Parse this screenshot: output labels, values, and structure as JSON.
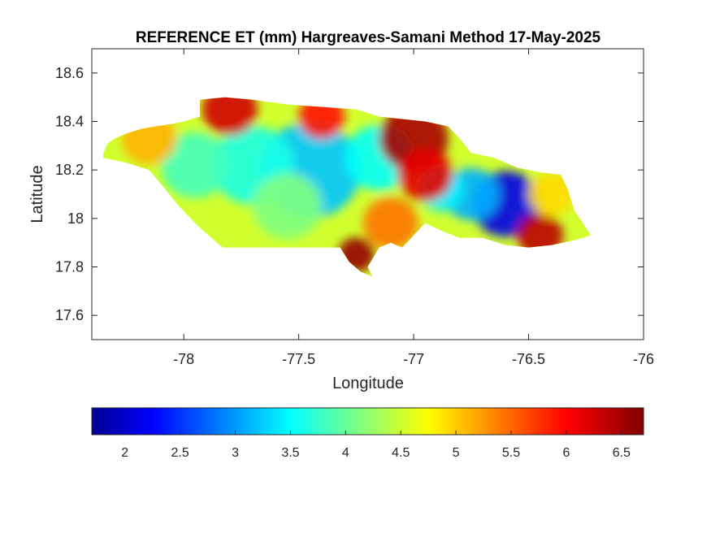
{
  "chart_data": {
    "type": "heatmap",
    "title": "REFERENCE ET (mm) Hargreaves-Samani Method  17-May-2025",
    "xlabel": "Longitude",
    "ylabel": "Latitude",
    "xlim": [
      -78.4,
      -76.0
    ],
    "ylim": [
      17.5,
      18.7
    ],
    "xticks": [
      -78,
      -77.5,
      -77,
      -76.5,
      -76
    ],
    "xtick_labels": [
      "-78",
      "-77.5",
      "-77",
      "-76.5",
      "-76"
    ],
    "yticks": [
      17.6,
      17.8,
      18.0,
      18.2,
      18.4,
      18.6
    ],
    "ytick_labels": [
      "17.6",
      "17.8",
      "18",
      "18.2",
      "18.4",
      "18.6"
    ],
    "colormap": "jet",
    "colorbar": {
      "location": "bottom",
      "clim": [
        1.7,
        6.7
      ],
      "ticks": [
        2,
        2.5,
        3,
        3.5,
        4,
        4.5,
        5,
        5.5,
        6,
        6.5
      ],
      "tick_labels": [
        "2",
        "2.5",
        "3",
        "3.5",
        "4",
        "4.5",
        "5",
        "5.5",
        "6",
        "6.5"
      ]
    },
    "grid": false,
    "region_outline": [
      [
        -78.35,
        18.27
      ],
      [
        -78.33,
        18.31
      ],
      [
        -78.3,
        18.33
      ],
      [
        -78.25,
        18.35
      ],
      [
        -78.18,
        18.37
      ],
      [
        -78.12,
        18.38
      ],
      [
        -78.05,
        18.39
      ],
      [
        -78.0,
        18.4
      ],
      [
        -77.93,
        18.42
      ],
      [
        -77.93,
        18.49
      ],
      [
        -77.82,
        18.5
      ],
      [
        -77.7,
        18.49
      ],
      [
        -77.55,
        18.47
      ],
      [
        -77.4,
        18.46
      ],
      [
        -77.25,
        18.45
      ],
      [
        -77.15,
        18.42
      ],
      [
        -77.05,
        18.41
      ],
      [
        -76.95,
        18.4
      ],
      [
        -76.85,
        18.38
      ],
      [
        -76.8,
        18.33
      ],
      [
        -76.75,
        18.27
      ],
      [
        -76.65,
        18.25
      ],
      [
        -76.55,
        18.21
      ],
      [
        -76.45,
        18.19
      ],
      [
        -76.36,
        18.18
      ],
      [
        -76.33,
        18.12
      ],
      [
        -76.3,
        18.03
      ],
      [
        -76.27,
        17.99
      ],
      [
        -76.23,
        17.93
      ],
      [
        -76.3,
        17.91
      ],
      [
        -76.4,
        17.89
      ],
      [
        -76.5,
        17.88
      ],
      [
        -76.6,
        17.89
      ],
      [
        -76.7,
        17.92
      ],
      [
        -76.8,
        17.92
      ],
      [
        -76.88,
        17.95
      ],
      [
        -76.95,
        17.98
      ],
      [
        -77.05,
        17.88
      ],
      [
        -77.1,
        17.9
      ],
      [
        -77.15,
        17.88
      ],
      [
        -77.2,
        17.8
      ],
      [
        -77.18,
        17.76
      ],
      [
        -77.23,
        17.78
      ],
      [
        -77.28,
        17.82
      ],
      [
        -77.32,
        17.88
      ],
      [
        -77.45,
        17.88
      ],
      [
        -77.6,
        17.88
      ],
      [
        -77.75,
        17.88
      ],
      [
        -77.83,
        17.88
      ],
      [
        -77.88,
        17.92
      ],
      [
        -77.95,
        17.98
      ],
      [
        -78.02,
        18.05
      ],
      [
        -78.08,
        18.12
      ],
      [
        -78.15,
        18.2
      ],
      [
        -78.25,
        18.23
      ],
      [
        -78.35,
        18.25
      ]
    ],
    "value_centers": [
      {
        "lon": -77.45,
        "lat": 18.2,
        "value": 3.3,
        "radius_deg": 0.22
      },
      {
        "lon": -77.7,
        "lat": 18.22,
        "value": 3.7,
        "radius_deg": 0.18
      },
      {
        "lon": -77.95,
        "lat": 18.22,
        "value": 3.9,
        "radius_deg": 0.15
      },
      {
        "lon": -77.55,
        "lat": 18.05,
        "value": 4.2,
        "radius_deg": 0.15
      },
      {
        "lon": -77.15,
        "lat": 18.25,
        "value": 3.6,
        "radius_deg": 0.15
      },
      {
        "lon": -76.6,
        "lat": 18.06,
        "value": 2.2,
        "radius_deg": 0.15
      },
      {
        "lon": -76.75,
        "lat": 18.1,
        "value": 3.2,
        "radius_deg": 0.12
      },
      {
        "lon": -76.88,
        "lat": 18.12,
        "value": 3.5,
        "radius_deg": 0.1
      },
      {
        "lon": -77.8,
        "lat": 18.45,
        "value": 6.3,
        "radius_deg": 0.12
      },
      {
        "lon": -77.4,
        "lat": 18.42,
        "value": 6.0,
        "radius_deg": 0.1
      },
      {
        "lon": -77.0,
        "lat": 18.33,
        "value": 6.5,
        "radius_deg": 0.15
      },
      {
        "lon": -76.95,
        "lat": 18.18,
        "value": 6.2,
        "radius_deg": 0.12
      },
      {
        "lon": -77.25,
        "lat": 17.85,
        "value": 6.6,
        "radius_deg": 0.08
      },
      {
        "lon": -76.45,
        "lat": 17.93,
        "value": 6.4,
        "radius_deg": 0.1
      },
      {
        "lon": -77.1,
        "lat": 17.98,
        "value": 5.5,
        "radius_deg": 0.12
      },
      {
        "lon": -78.15,
        "lat": 18.33,
        "value": 5.2,
        "radius_deg": 0.12
      },
      {
        "lon": -76.4,
        "lat": 18.1,
        "value": 5.0,
        "radius_deg": 0.1
      }
    ],
    "background_value": 4.6
  }
}
